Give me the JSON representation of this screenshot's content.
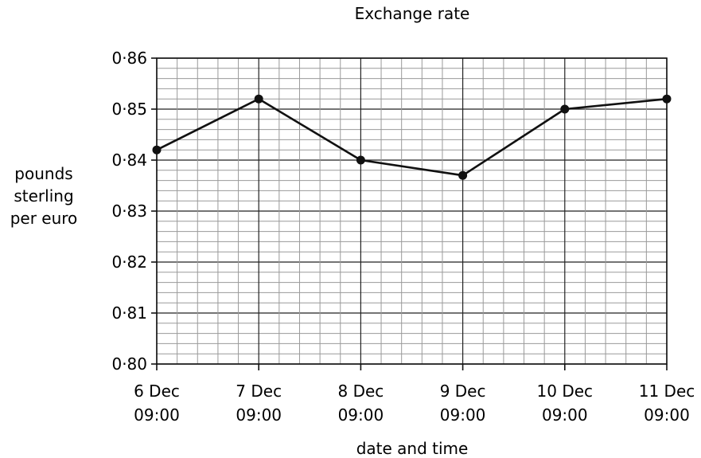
{
  "chart_data": {
    "type": "line",
    "title": "Exchange rate",
    "xlabel": "date and time",
    "ylabel": [
      "pounds",
      "sterling",
      "per euro"
    ],
    "categories": [
      [
        "6 Dec",
        "09:00"
      ],
      [
        "7 Dec",
        "09:00"
      ],
      [
        "8 Dec",
        "09:00"
      ],
      [
        "9 Dec",
        "09:00"
      ],
      [
        "10 Dec",
        "09:00"
      ],
      [
        "11 Dec",
        "09:00"
      ]
    ],
    "values": [
      0.842,
      0.852,
      0.84,
      0.837,
      0.85,
      0.852
    ],
    "ylim": [
      0.8,
      0.86
    ],
    "yticks": [
      0.8,
      0.81,
      0.82,
      0.83,
      0.84,
      0.85,
      0.86
    ],
    "ytick_labels": [
      "0·80",
      "0·81",
      "0·82",
      "0·83",
      "0·84",
      "0·85",
      "0·86"
    ],
    "grid": true,
    "colors": {
      "line": "#111111"
    }
  }
}
